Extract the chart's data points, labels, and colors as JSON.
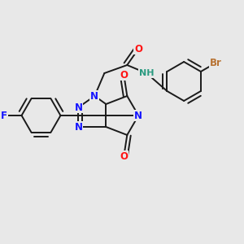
{
  "background_color": "#e8e8e8",
  "bond_color": "#1a1a1a",
  "bond_width": 1.4,
  "dbo": 0.007,
  "figsize": [
    3.0,
    3.0
  ],
  "dpi": 100,
  "colors": {
    "N": "#1414ff",
    "O": "#ff1414",
    "F": "#1414ff",
    "Br": "#b87333",
    "NH": "#2a9a80",
    "C": "#1a1a1a",
    "bond": "#1a1a1a"
  }
}
